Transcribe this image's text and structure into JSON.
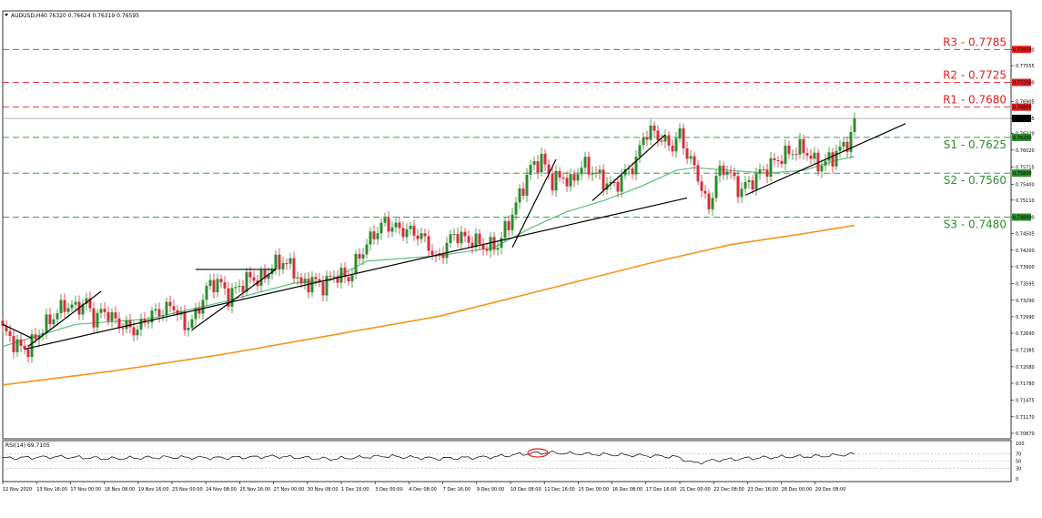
{
  "header": {
    "symbol": "AUDUSD,H4",
    "ohlc": "0.76320 0.76624 0.76319 0.76595"
  },
  "levels": [
    {
      "name": "R3",
      "label": "R3 - 0.7785",
      "value": 0.7785,
      "type": "resistance",
      "color": "#e02020"
    },
    {
      "name": "R2",
      "label": "R2 - 0.7725",
      "value": 0.7725,
      "type": "resistance",
      "color": "#e02020"
    },
    {
      "name": "R1",
      "label": "R1 - 0.7680",
      "value": 0.768,
      "type": "resistance",
      "color": "#e02020"
    },
    {
      "name": "S1",
      "label": "S1 - 0.7625",
      "value": 0.7625,
      "type": "support",
      "color": "#2e8b2e"
    },
    {
      "name": "S2",
      "label": "S2 - 0.7560",
      "value": 0.756,
      "type": "support",
      "color": "#2e8b2e"
    },
    {
      "name": "S3",
      "label": "S3 - 0.7480",
      "value": 0.748,
      "type": "support",
      "color": "#2e8b2e"
    }
  ],
  "chart_data": {
    "type": "candlestick",
    "symbol": "AUDUSD",
    "timeframe": "H4",
    "ylim": [
      0.7077,
      0.7855
    ],
    "y_ticks": [
      "0.77850",
      "0.77555",
      "0.77250",
      "0.76905",
      "0.76595",
      "0.76320",
      "0.76020",
      "0.75715",
      "0.75400",
      "0.75110",
      "0.74800",
      "0.74505",
      "0.74200",
      "0.73900",
      "0.73595",
      "0.73290",
      "0.72990",
      "0.72690",
      "0.72385",
      "0.72080",
      "0.71780",
      "0.71475",
      "0.71170",
      "0.70870"
    ],
    "x_ticks": [
      "12 Nov 2020",
      "13 Nov 16:00",
      "17 Nov 00:00",
      "18 Nov 08:00",
      "19 Nov 16:00",
      "23 Nov 00:00",
      "24 Nov 08:00",
      "25 Nov 16:00",
      "27 Nov 00:00",
      "30 Nov 08:00",
      "1 Dec 16:00",
      "3 Dec 00:00",
      "4 Dec 08:00",
      "7 Dec 16:00",
      "9 Dec 00:00",
      "10 Dec 08:00",
      "11 Dec 16:00",
      "15 Dec 00:00",
      "16 Dec 08:00",
      "17 Dec 16:00",
      "21 Dec 00:00",
      "22 Dec 08:00",
      "23 Dec 16:00",
      "28 Dec 00:00",
      "29 Dec 08:00"
    ],
    "last_price": "0.76595",
    "bull_color": "#2e8b2e",
    "bear_color": "#d62e3c",
    "ma_short_color": "#5cbf7a",
    "ma_long_color": "#f7941d",
    "anchors": [
      [
        0,
        0.7275
      ],
      [
        4,
        0.7245
      ],
      [
        7,
        0.724
      ],
      [
        10,
        0.727
      ],
      [
        14,
        0.73
      ],
      [
        17,
        0.732
      ],
      [
        20,
        0.7315
      ],
      [
        23,
        0.7325
      ],
      [
        25,
        0.7295
      ],
      [
        28,
        0.731
      ],
      [
        31,
        0.729
      ],
      [
        34,
        0.728
      ],
      [
        37,
        0.7275
      ],
      [
        40,
        0.73
      ],
      [
        44,
        0.731
      ],
      [
        47,
        0.732
      ],
      [
        50,
        0.728
      ],
      [
        53,
        0.73
      ],
      [
        56,
        0.735
      ],
      [
        59,
        0.7365
      ],
      [
        62,
        0.7335
      ],
      [
        65,
        0.7355
      ],
      [
        68,
        0.737
      ],
      [
        71,
        0.7365
      ],
      [
        74,
        0.739
      ],
      [
        77,
        0.74
      ],
      [
        80,
        0.7385
      ],
      [
        82,
        0.7355
      ],
      [
        85,
        0.7365
      ],
      [
        88,
        0.7355
      ],
      [
        91,
        0.7375
      ],
      [
        95,
        0.737
      ],
      [
        98,
        0.741
      ],
      [
        102,
        0.745
      ],
      [
        105,
        0.747
      ],
      [
        108,
        0.746
      ],
      [
        111,
        0.7455
      ],
      [
        114,
        0.745
      ],
      [
        117,
        0.743
      ],
      [
        119,
        0.74
      ],
      [
        121,
        0.742
      ],
      [
        124,
        0.745
      ],
      [
        127,
        0.744
      ],
      [
        130,
        0.7435
      ],
      [
        133,
        0.7425
      ],
      [
        136,
        0.743
      ],
      [
        139,
        0.747
      ],
      [
        142,
        0.752
      ],
      [
        145,
        0.757
      ],
      [
        148,
        0.7585
      ],
      [
        151,
        0.7545
      ],
      [
        154,
        0.7555
      ],
      [
        156,
        0.754
      ],
      [
        159,
        0.7575
      ],
      [
        162,
        0.7565
      ],
      [
        165,
        0.7545
      ],
      [
        168,
        0.7535
      ],
      [
        171,
        0.756
      ],
      [
        174,
        0.758
      ],
      [
        176,
        0.763
      ],
      [
        179,
        0.7635
      ],
      [
        182,
        0.7615
      ],
      [
        184,
        0.761
      ],
      [
        186,
        0.763
      ],
      [
        188,
        0.7595
      ],
      [
        191,
        0.7555
      ],
      [
        193,
        0.751
      ],
      [
        194,
        0.7495
      ],
      [
        196,
        0.7555
      ],
      [
        199,
        0.757
      ],
      [
        202,
        0.753
      ],
      [
        205,
        0.754
      ],
      [
        208,
        0.756
      ],
      [
        211,
        0.7575
      ],
      [
        214,
        0.759
      ],
      [
        217,
        0.76
      ],
      [
        220,
        0.7605
      ],
      [
        223,
        0.758
      ],
      [
        225,
        0.7575
      ],
      [
        228,
        0.759
      ],
      [
        231,
        0.761
      ],
      [
        233,
        0.7625
      ],
      [
        234,
        0.766
      ]
    ],
    "ma_short": [
      [
        0,
        0.7245
      ],
      [
        20,
        0.7285
      ],
      [
        40,
        0.7295
      ],
      [
        60,
        0.7325
      ],
      [
        80,
        0.736
      ],
      [
        90,
        0.7365
      ],
      [
        100,
        0.74
      ],
      [
        120,
        0.741
      ],
      [
        135,
        0.7425
      ],
      [
        145,
        0.746
      ],
      [
        155,
        0.749
      ],
      [
        165,
        0.751
      ],
      [
        175,
        0.7535
      ],
      [
        185,
        0.7565
      ],
      [
        190,
        0.757
      ],
      [
        200,
        0.7565
      ],
      [
        210,
        0.756
      ],
      [
        220,
        0.7565
      ],
      [
        230,
        0.7585
      ],
      [
        234,
        0.759
      ]
    ],
    "ma_long": [
      [
        0,
        0.7175
      ],
      [
        30,
        0.72
      ],
      [
        60,
        0.723
      ],
      [
        90,
        0.7265
      ],
      [
        120,
        0.73
      ],
      [
        150,
        0.735
      ],
      [
        180,
        0.74
      ],
      [
        200,
        0.743
      ],
      [
        220,
        0.745
      ],
      [
        234,
        0.7465
      ]
    ],
    "trendlines": [
      [
        [
          0,
          0.7285
        ],
        [
          8,
          0.726
        ]
      ],
      [
        [
          6,
          0.724
        ],
        [
          188,
          0.7515
        ]
      ],
      [
        [
          7,
          0.7245
        ],
        [
          27,
          0.7345
        ]
      ],
      [
        [
          52,
          0.7275
        ],
        [
          75,
          0.7385
        ]
      ],
      [
        [
          53,
          0.7385
        ],
        [
          75,
          0.7385
        ]
      ],
      [
        [
          140,
          0.7425
        ],
        [
          152,
          0.7585
        ]
      ],
      [
        [
          162,
          0.751
        ],
        [
          182,
          0.763
        ]
      ],
      [
        [
          204,
          0.752
        ],
        [
          248,
          0.765
        ]
      ]
    ],
    "rsi": {
      "label": "RSI(14) 69.7105",
      "period": 14,
      "value": 69.7105,
      "levels": [
        70,
        50,
        30
      ],
      "ylim": [
        0,
        100
      ],
      "ticks": [
        "100",
        "70",
        "50",
        "30",
        "0"
      ],
      "anchors": [
        [
          0,
          58
        ],
        [
          15,
          62
        ],
        [
          30,
          57
        ],
        [
          45,
          61
        ],
        [
          60,
          59
        ],
        [
          75,
          63
        ],
        [
          90,
          56
        ],
        [
          105,
          64
        ],
        [
          120,
          57
        ],
        [
          135,
          62
        ],
        [
          145,
          72
        ],
        [
          150,
          74
        ],
        [
          160,
          70
        ],
        [
          175,
          66
        ],
        [
          185,
          62
        ],
        [
          190,
          44
        ],
        [
          195,
          52
        ],
        [
          205,
          58
        ],
        [
          215,
          62
        ],
        [
          225,
          64
        ],
        [
          234,
          69.7
        ]
      ]
    }
  }
}
